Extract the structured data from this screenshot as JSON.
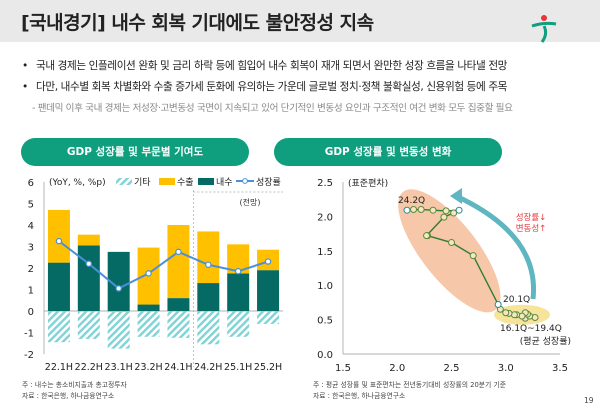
{
  "header": {
    "title": "[국내경기] 내수 회복 기대에도 불안정성 지속"
  },
  "bullets": [
    "국내 경제는 인플레이션 완화 및 금리 하락 등에 힘입어 내수 회복이 재개 되면서 완만한 성장 흐름을 나타낼 전망",
    "다만, 내수별 회복 차별화와 수출 증가세 둔화에 유의하는 가운데 글로벌 정치·정책 불확실성, 신용위험 등에 주목"
  ],
  "sub_bullet": "- 팬데믹 이후 국내 경제는 저성장·고변동성 국면이 지속되고 있어 단기적인 변동성 요인과 구조적인 여건 변화 모두 집중할 필요",
  "page_number": "19",
  "colors": {
    "accent": "#0f9f7f",
    "domestic": "#046a63",
    "export": "#ffc000",
    "other": "#7fd3d5",
    "growth": "#4a90d9",
    "scatter_line": "#2e7d32",
    "ellipse_orange": "#f4b994",
    "ellipse_yellow": "#f7e49b",
    "arrow": "#5fb6c0",
    "red": "#e8353a"
  },
  "chart_data": [
    {
      "type": "bar",
      "header": "GDP 성장률 및 부문별 기여도",
      "unit_label": "(YoY, %, %p)",
      "categories": [
        "22.1H",
        "22.2H",
        "23.1H",
        "23.2H",
        "24.1H",
        "24.2H",
        "25.1H",
        "25.2H"
      ],
      "series": [
        {
          "name": "기타",
          "values": [
            -1.45,
            -1.3,
            -1.75,
            -1.2,
            -1.25,
            -1.55,
            -1.2,
            -0.6
          ]
        },
        {
          "name": "수출",
          "values": [
            2.45,
            0.5,
            -0.05,
            2.65,
            3.4,
            2.4,
            1.35,
            0.95
          ]
        },
        {
          "name": "내수",
          "values": [
            2.25,
            3.05,
            2.75,
            0.3,
            0.6,
            1.3,
            1.75,
            1.9
          ]
        },
        {
          "name": "성장률",
          "values": [
            3.25,
            2.2,
            1.05,
            1.75,
            2.75,
            2.15,
            1.85,
            2.3
          ]
        }
      ],
      "ylim": [
        -2,
        6
      ],
      "yticks": [
        "-2",
        "-1",
        "0",
        "1",
        "2",
        "3",
        "4",
        "5",
        "6"
      ],
      "annotation": "(전망)",
      "forecast_from": "24.2H",
      "notes": [
        "주 : 내수는 총소비지출과 총고정투자",
        "자료 : 한국은행, 하나금융연구소"
      ]
    },
    {
      "type": "scatter",
      "header": "GDP 성장률 및 변동성 변화",
      "ylabel": "(표준편차)",
      "xlabel": "(평균 성장률)",
      "xlim": [
        1.5,
        3.5
      ],
      "ylim": [
        0,
        2.5
      ],
      "xticks": [
        "1.5",
        "2.0",
        "2.5",
        "3.0",
        "3.5"
      ],
      "yticks": [
        "0.0",
        "0.5",
        "1.0",
        "1.5",
        "2.0",
        "2.5"
      ],
      "points": [
        [
          3.27,
          0.53
        ],
        [
          3.18,
          0.52
        ],
        [
          3.22,
          0.55
        ],
        [
          3.2,
          0.58
        ],
        [
          3.18,
          0.6
        ],
        [
          3.15,
          0.55
        ],
        [
          3.1,
          0.57
        ],
        [
          3.08,
          0.57
        ],
        [
          3.03,
          0.59
        ],
        [
          3.0,
          0.6
        ],
        [
          2.95,
          0.65
        ],
        [
          2.93,
          0.72
        ],
        [
          2.7,
          1.43
        ],
        [
          2.5,
          1.62
        ],
        [
          2.28,
          1.72
        ],
        [
          2.27,
          1.72
        ],
        [
          2.43,
          1.99
        ],
        [
          2.52,
          2.05
        ],
        [
          2.57,
          2.09
        ],
        [
          2.45,
          2.08
        ],
        [
          2.33,
          2.09
        ],
        [
          2.22,
          2.1
        ],
        [
          2.15,
          2.1
        ],
        [
          2.09,
          2.09
        ]
      ],
      "labels": {
        "start": "16.1Q~19.4Q",
        "mid": "20.1Q",
        "end": "24.2Q"
      },
      "annotation": [
        "성장률↓",
        "변동성↑"
      ],
      "notes": [
        "주 : 평균 성장률 및 표준편차는 전년동기대비 성장률의 20분기 기준",
        "자료 : 한국은행, 하나금융연구소"
      ]
    }
  ]
}
